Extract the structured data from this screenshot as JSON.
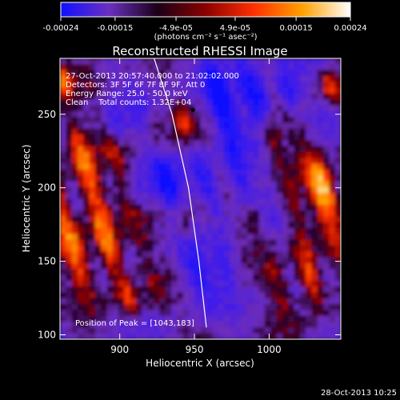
{
  "chart_data": {
    "type": "heatmap",
    "title": "Reconstructed RHESSI Image",
    "xlabel": "Heliocentric X (arcsec)",
    "ylabel": "Heliocentric Y (arcsec)",
    "xlim": [
      860,
      1048
    ],
    "ylim": [
      97,
      288
    ],
    "x_ticks": [
      {
        "value": 900,
        "label": "900"
      },
      {
        "value": 950,
        "label": "950"
      },
      {
        "value": 1000,
        "label": "1000"
      }
    ],
    "y_ticks": [
      {
        "value": 100,
        "label": "100"
      },
      {
        "value": 150,
        "label": "150"
      },
      {
        "value": 200,
        "label": "200"
      },
      {
        "value": 250,
        "label": "250"
      }
    ],
    "colorbar": {
      "min": -0.00024,
      "max": 0.00024,
      "unit_label": "(photons cm⁻² s⁻¹ asec⁻²)",
      "ticks": [
        {
          "value": -0.00024,
          "label": "-0.00024"
        },
        {
          "value": -0.00015,
          "label": "-0.00015"
        },
        {
          "value": -4.9e-05,
          "label": "-4.9e-05"
        },
        {
          "value": 4.9e-05,
          "label": "4.9e-05"
        },
        {
          "value": 0.00015,
          "label": "0.00015"
        },
        {
          "value": 0.00024,
          "label": "0.00024"
        }
      ],
      "colors": [
        "#1010ff",
        "#6a30c0",
        "#1a0018",
        "#8a0000",
        "#ff3000",
        "#ffa000",
        "#ffffff"
      ]
    },
    "annotations": [
      "27-Oct-2013 20:57:40.000 to 21:02:02.000",
      "Detectors: 3F 5F 6F 7F 8F 9F, Att 0",
      "Energy Range: 25.0 - 50.0 keV",
      "Clean    Total counts: 1.32E+04"
    ],
    "peak_label": "Position of Peak = [1043,183]",
    "peak": {
      "x": 1043,
      "y": 183
    },
    "marker": {
      "x": 949,
      "y": 253
    },
    "limb_curve": [
      [
        923,
        288
      ],
      [
        935,
        250
      ],
      [
        946,
        200
      ],
      [
        953,
        150
      ],
      [
        958,
        105
      ]
    ],
    "grid": false
  },
  "footer_timestamp": "28-Oct-2013 10:25"
}
